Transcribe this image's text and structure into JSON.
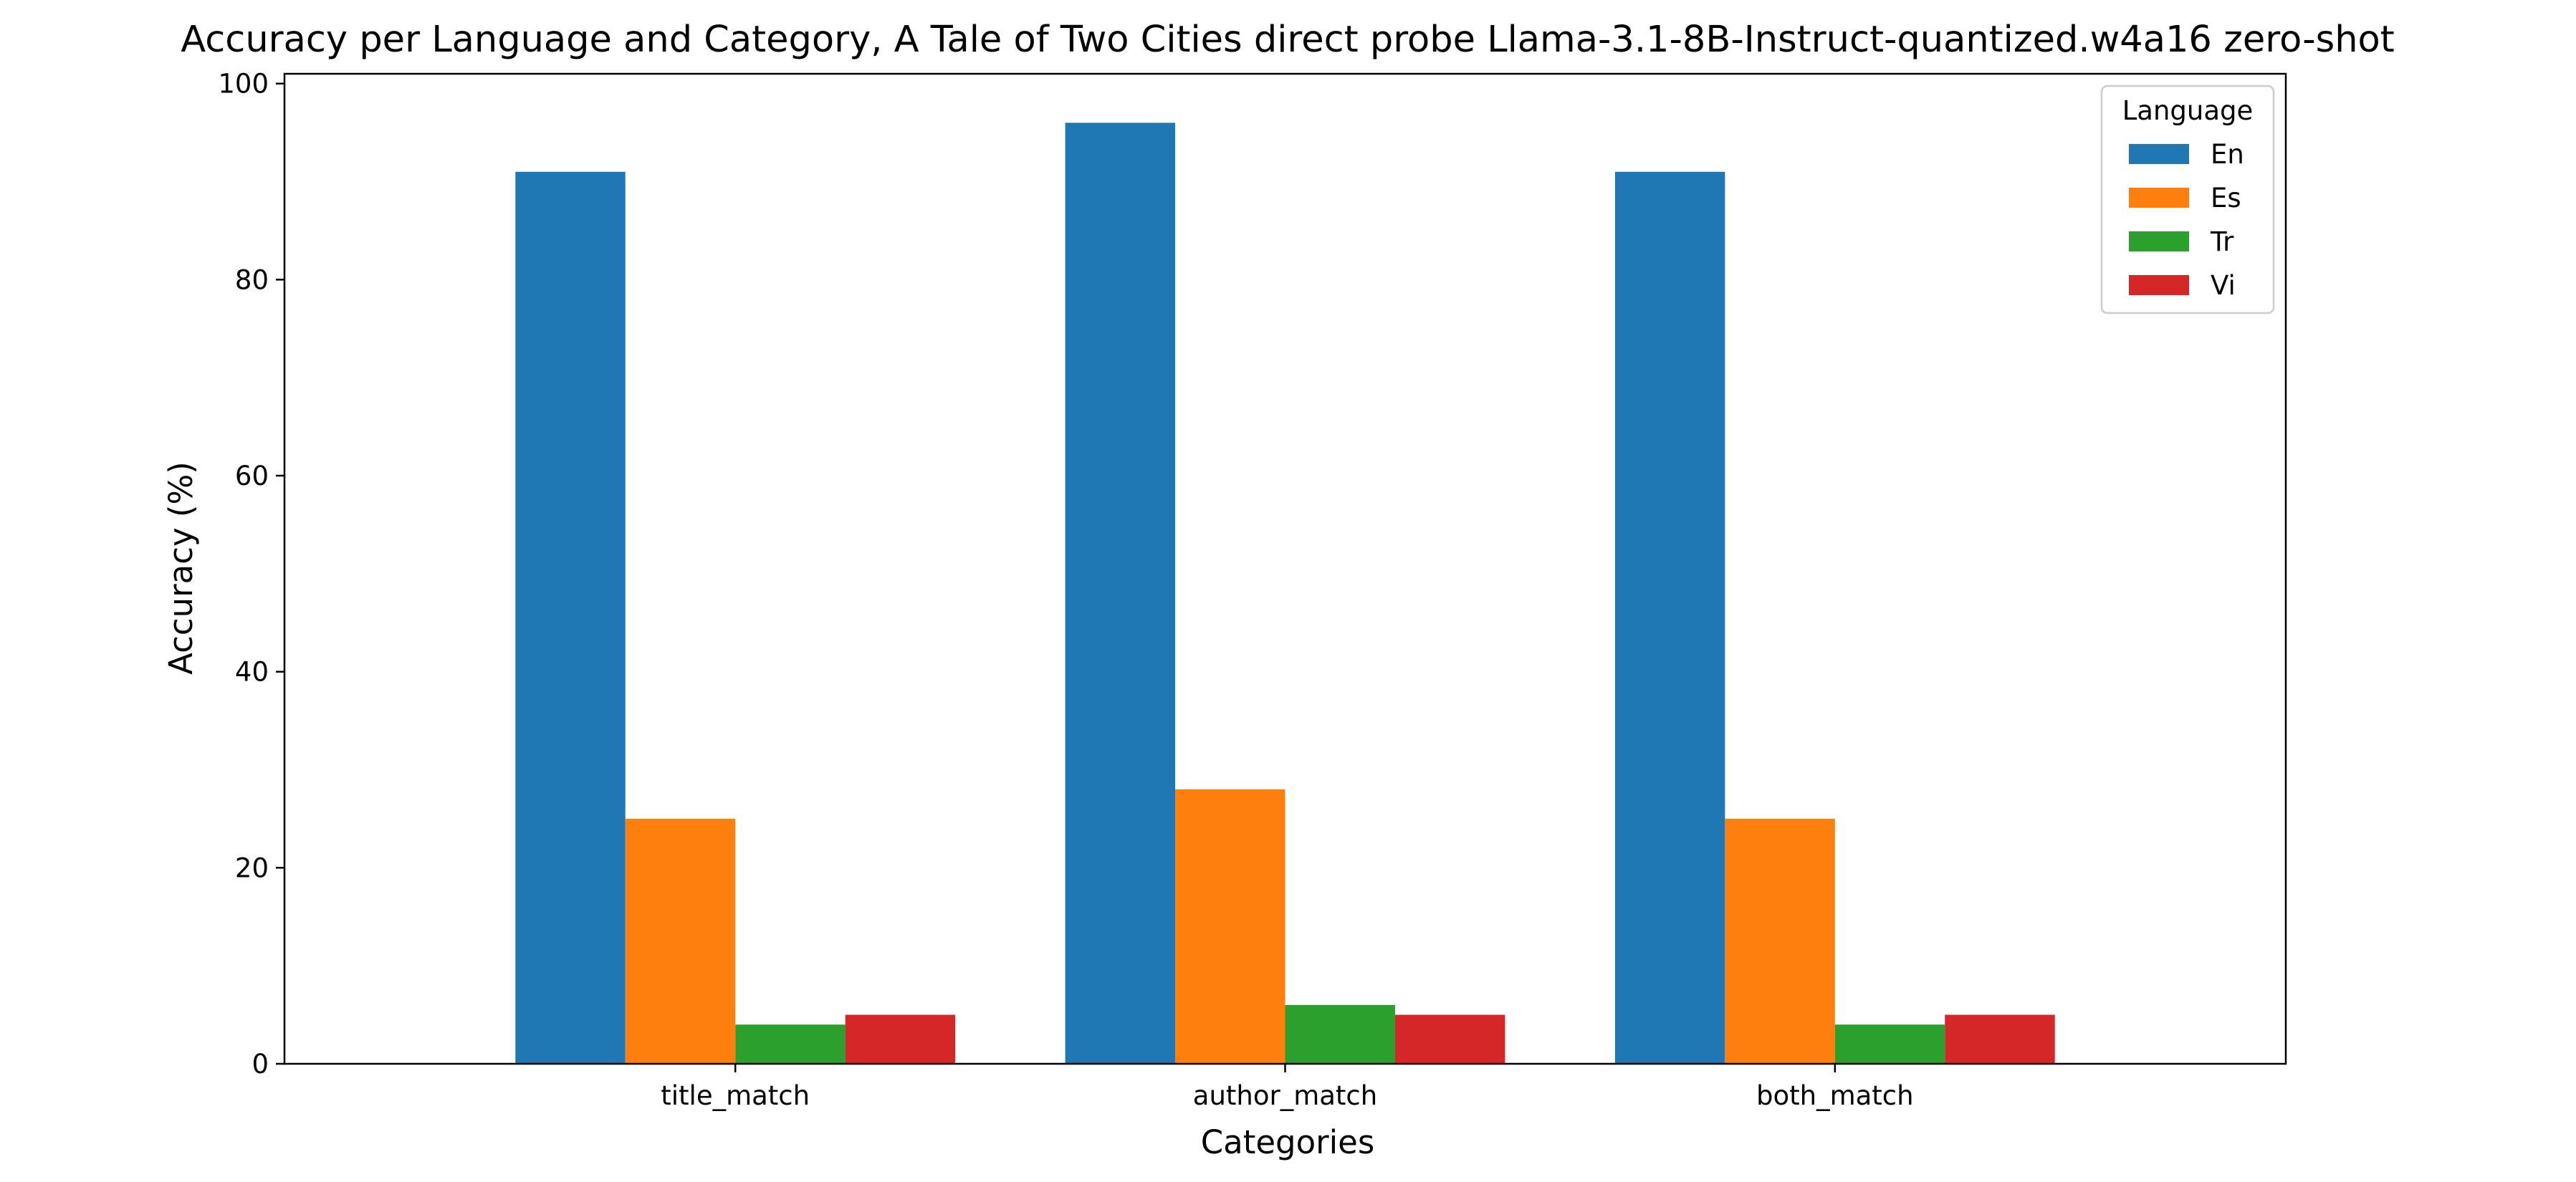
{
  "chart_data": {
    "type": "bar",
    "title": "Accuracy per Language and Category, A Tale of Two Cities direct probe Llama-3.1-8B-Instruct-quantized.w4a16 zero-shot",
    "xlabel": "Categories",
    "ylabel": "Accuracy (%)",
    "categories": [
      "title_match",
      "author_match",
      "both_match"
    ],
    "ylim": [
      0,
      101
    ],
    "yticks": [
      0,
      20,
      40,
      60,
      80,
      100
    ],
    "grid": false,
    "legend": {
      "title": "Language",
      "placement": "top-right"
    },
    "series": [
      {
        "name": "En",
        "color": "#1f77b4",
        "values": [
          91,
          96,
          91
        ]
      },
      {
        "name": "Es",
        "color": "#ff7f0e",
        "values": [
          25,
          28,
          25
        ]
      },
      {
        "name": "Tr",
        "color": "#2ca02c",
        "values": [
          4,
          6,
          4
        ]
      },
      {
        "name": "Vi",
        "color": "#d62728",
        "values": [
          5,
          5,
          5
        ]
      }
    ]
  }
}
